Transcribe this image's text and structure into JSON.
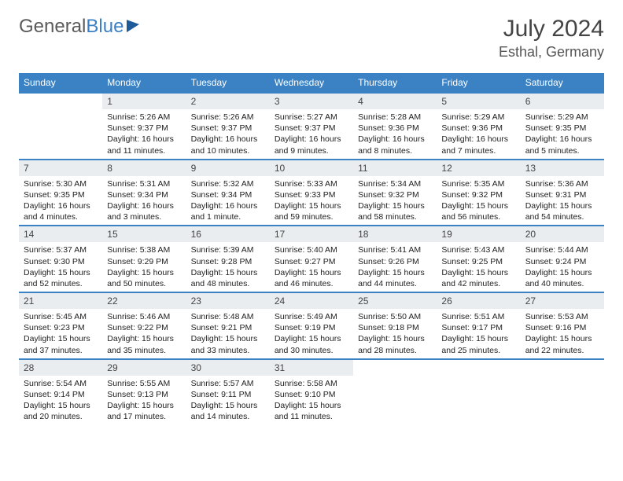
{
  "brand": {
    "part1": "General",
    "part2": "Blue"
  },
  "title": "July 2024",
  "location": "Esthal, Germany",
  "colors": {
    "header_bg": "#3b82c4",
    "header_text": "#ffffff",
    "daynum_bg": "#e9edf0",
    "row_border": "#3b82c4",
    "body_text": "#222222",
    "page_bg": "#ffffff"
  },
  "weekdays": [
    "Sunday",
    "Monday",
    "Tuesday",
    "Wednesday",
    "Thursday",
    "Friday",
    "Saturday"
  ],
  "startOffset": 1,
  "days": [
    {
      "n": 1,
      "sr": "5:26 AM",
      "ss": "9:37 PM",
      "dl": "16 hours and 11 minutes."
    },
    {
      "n": 2,
      "sr": "5:26 AM",
      "ss": "9:37 PM",
      "dl": "16 hours and 10 minutes."
    },
    {
      "n": 3,
      "sr": "5:27 AM",
      "ss": "9:37 PM",
      "dl": "16 hours and 9 minutes."
    },
    {
      "n": 4,
      "sr": "5:28 AM",
      "ss": "9:36 PM",
      "dl": "16 hours and 8 minutes."
    },
    {
      "n": 5,
      "sr": "5:29 AM",
      "ss": "9:36 PM",
      "dl": "16 hours and 7 minutes."
    },
    {
      "n": 6,
      "sr": "5:29 AM",
      "ss": "9:35 PM",
      "dl": "16 hours and 5 minutes."
    },
    {
      "n": 7,
      "sr": "5:30 AM",
      "ss": "9:35 PM",
      "dl": "16 hours and 4 minutes."
    },
    {
      "n": 8,
      "sr": "5:31 AM",
      "ss": "9:34 PM",
      "dl": "16 hours and 3 minutes."
    },
    {
      "n": 9,
      "sr": "5:32 AM",
      "ss": "9:34 PM",
      "dl": "16 hours and 1 minute."
    },
    {
      "n": 10,
      "sr": "5:33 AM",
      "ss": "9:33 PM",
      "dl": "15 hours and 59 minutes."
    },
    {
      "n": 11,
      "sr": "5:34 AM",
      "ss": "9:32 PM",
      "dl": "15 hours and 58 minutes."
    },
    {
      "n": 12,
      "sr": "5:35 AM",
      "ss": "9:32 PM",
      "dl": "15 hours and 56 minutes."
    },
    {
      "n": 13,
      "sr": "5:36 AM",
      "ss": "9:31 PM",
      "dl": "15 hours and 54 minutes."
    },
    {
      "n": 14,
      "sr": "5:37 AM",
      "ss": "9:30 PM",
      "dl": "15 hours and 52 minutes."
    },
    {
      "n": 15,
      "sr": "5:38 AM",
      "ss": "9:29 PM",
      "dl": "15 hours and 50 minutes."
    },
    {
      "n": 16,
      "sr": "5:39 AM",
      "ss": "9:28 PM",
      "dl": "15 hours and 48 minutes."
    },
    {
      "n": 17,
      "sr": "5:40 AM",
      "ss": "9:27 PM",
      "dl": "15 hours and 46 minutes."
    },
    {
      "n": 18,
      "sr": "5:41 AM",
      "ss": "9:26 PM",
      "dl": "15 hours and 44 minutes."
    },
    {
      "n": 19,
      "sr": "5:43 AM",
      "ss": "9:25 PM",
      "dl": "15 hours and 42 minutes."
    },
    {
      "n": 20,
      "sr": "5:44 AM",
      "ss": "9:24 PM",
      "dl": "15 hours and 40 minutes."
    },
    {
      "n": 21,
      "sr": "5:45 AM",
      "ss": "9:23 PM",
      "dl": "15 hours and 37 minutes."
    },
    {
      "n": 22,
      "sr": "5:46 AM",
      "ss": "9:22 PM",
      "dl": "15 hours and 35 minutes."
    },
    {
      "n": 23,
      "sr": "5:48 AM",
      "ss": "9:21 PM",
      "dl": "15 hours and 33 minutes."
    },
    {
      "n": 24,
      "sr": "5:49 AM",
      "ss": "9:19 PM",
      "dl": "15 hours and 30 minutes."
    },
    {
      "n": 25,
      "sr": "5:50 AM",
      "ss": "9:18 PM",
      "dl": "15 hours and 28 minutes."
    },
    {
      "n": 26,
      "sr": "5:51 AM",
      "ss": "9:17 PM",
      "dl": "15 hours and 25 minutes."
    },
    {
      "n": 27,
      "sr": "5:53 AM",
      "ss": "9:16 PM",
      "dl": "15 hours and 22 minutes."
    },
    {
      "n": 28,
      "sr": "5:54 AM",
      "ss": "9:14 PM",
      "dl": "15 hours and 20 minutes."
    },
    {
      "n": 29,
      "sr": "5:55 AM",
      "ss": "9:13 PM",
      "dl": "15 hours and 17 minutes."
    },
    {
      "n": 30,
      "sr": "5:57 AM",
      "ss": "9:11 PM",
      "dl": "15 hours and 14 minutes."
    },
    {
      "n": 31,
      "sr": "5:58 AM",
      "ss": "9:10 PM",
      "dl": "15 hours and 11 minutes."
    }
  ],
  "labels": {
    "sunrise": "Sunrise:",
    "sunset": "Sunset:",
    "daylight": "Daylight:"
  }
}
